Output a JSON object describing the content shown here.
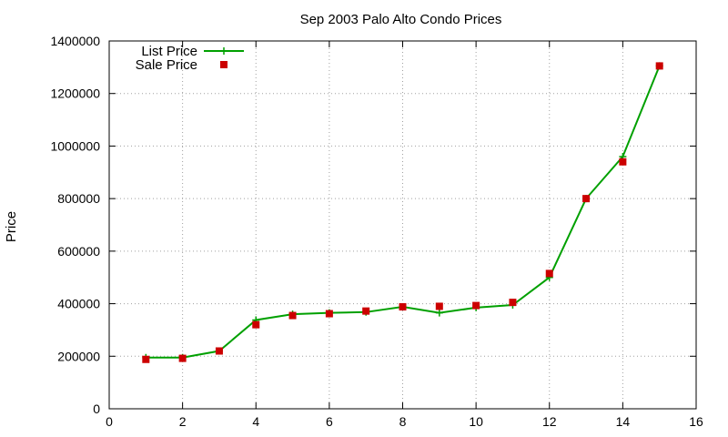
{
  "chart_data": {
    "type": "line",
    "title": "Sep 2003 Palo Alto Condo Prices",
    "xlabel": "",
    "ylabel": "Price",
    "xlim": [
      0,
      16
    ],
    "ylim": [
      0,
      1400000
    ],
    "x_ticks": [
      0,
      2,
      4,
      6,
      8,
      10,
      12,
      14,
      16
    ],
    "y_ticks": [
      0,
      200000,
      400000,
      600000,
      800000,
      1000000,
      1200000,
      1400000
    ],
    "grid": true,
    "legend_position": "top-left",
    "series": [
      {
        "name": "List Price",
        "style": "line-with-plus-markers",
        "color": "#00a000",
        "x": [
          1,
          2,
          3,
          4,
          5,
          6,
          7,
          8,
          9,
          10,
          11,
          12,
          13,
          14,
          15
        ],
        "values": [
          195000,
          195000,
          220000,
          338000,
          360000,
          365000,
          368000,
          388000,
          365000,
          385000,
          395000,
          500000,
          800000,
          960000,
          1305000
        ]
      },
      {
        "name": "Sale Price",
        "style": "square-points",
        "color": "#cc0000",
        "x": [
          1,
          2,
          3,
          4,
          5,
          6,
          7,
          8,
          9,
          10,
          11,
          12,
          13,
          14,
          15
        ],
        "values": [
          188000,
          192000,
          220000,
          320000,
          355000,
          362000,
          372000,
          388000,
          390000,
          393000,
          405000,
          515000,
          800000,
          940000,
          1305000
        ]
      }
    ]
  }
}
